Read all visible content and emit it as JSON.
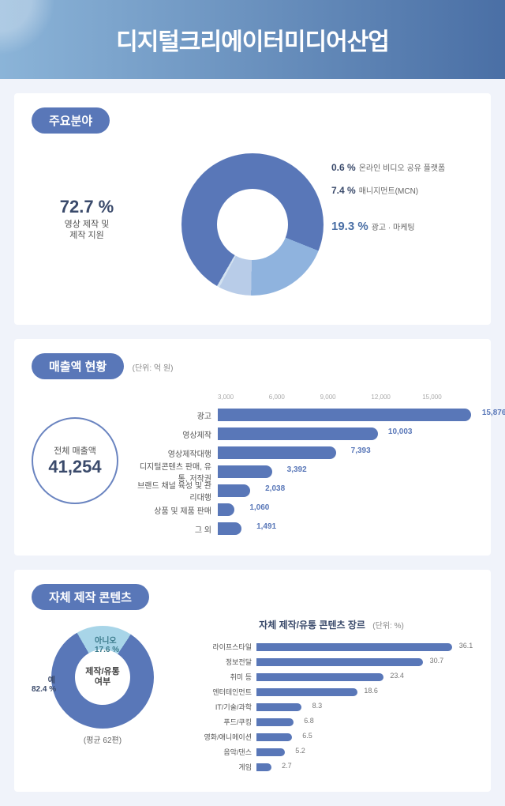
{
  "header": {
    "title": "디지털크리에이터미디어산업"
  },
  "colors": {
    "primary": "#5977b8",
    "primary_light": "#8fb3de",
    "primary_pale": "#b8cce8",
    "accent_cyan": "#a8d5e8",
    "text_dark": "#3a4a6b",
    "text_muted": "#666666",
    "bg": "#f0f3fa",
    "panel": "#ffffff"
  },
  "section1": {
    "badge": "주요분야",
    "main": {
      "percent": "72.7 %",
      "label": "영상 제작 및\n제작 지원"
    },
    "slices": [
      {
        "percent": 72.7,
        "color": "#5977b8",
        "label": "영상 제작 및 제작 지원"
      },
      {
        "percent": 19.3,
        "color": "#8fb3de",
        "label": "광고 · 마케팅"
      },
      {
        "percent": 7.4,
        "color": "#b8cce8",
        "label": "매니지먼트(MCN)"
      },
      {
        "percent": 0.6,
        "color": "#d3e2f0",
        "label": "온라인 비디오 공유 플랫폼"
      }
    ],
    "callouts": [
      {
        "p": "0.6 %",
        "t": "온라인 비디오 공유 플랫폼"
      },
      {
        "p": "7.4 %",
        "t": "매니지먼트(MCN)"
      },
      {
        "p": "19.3 %",
        "t": "광고 · 마케팅"
      }
    ]
  },
  "section2": {
    "badge": "매출액 현황",
    "unit": "(단위: 억 원)",
    "total_label": "전체 매출액",
    "total_value": "41,254",
    "axis": [
      "3,000",
      "6,000",
      "9,000",
      "12,000",
      "15,000"
    ],
    "axis_max": 16000,
    "bar_color": "#5977b8",
    "bars": [
      {
        "label": "광고",
        "value": 15876,
        "display": "15,876"
      },
      {
        "label": "영상제작",
        "value": 10003,
        "display": "10,003"
      },
      {
        "label": "영상제작대행",
        "value": 7393,
        "display": "7,393"
      },
      {
        "label": "디지털콘텐츠 판매, 유통, 저작권",
        "value": 3392,
        "display": "3,392"
      },
      {
        "label": "브랜드 채널 육성 및 관리대행",
        "value": 2038,
        "display": "2,038"
      },
      {
        "label": "상품 및 제품 판매",
        "value": 1060,
        "display": "1,060"
      },
      {
        "label": "그 외",
        "value": 1491,
        "display": "1,491"
      }
    ]
  },
  "section3": {
    "badge": "자체 제작 콘텐츠",
    "donut_center": "제작/유통\n여부",
    "yes": {
      "label": "예",
      "percent": "82.4 %",
      "color": "#5977b8",
      "value": 82.4
    },
    "no": {
      "label": "아니오",
      "percent": "17.6 %",
      "color": "#a8d5e8",
      "value": 17.6
    },
    "avg_note": "(평균 62편)",
    "genre_title": "자체 제작/유통 콘텐츠 장르",
    "genre_unit": "(단위: %)",
    "genre_max": 40,
    "genres": [
      {
        "label": "라이프스타일",
        "value": 36.1
      },
      {
        "label": "정보전달",
        "value": 30.7
      },
      {
        "label": "취미 등",
        "value": 23.4
      },
      {
        "label": "엔터테인먼트",
        "value": 18.6
      },
      {
        "label": "IT/기술/과학",
        "value": 8.3
      },
      {
        "label": "푸드/쿠킹",
        "value": 6.8
      },
      {
        "label": "영화/애니메이션",
        "value": 6.5
      },
      {
        "label": "음악/댄스",
        "value": 5.2
      },
      {
        "label": "게임",
        "value": 2.7
      }
    ]
  }
}
